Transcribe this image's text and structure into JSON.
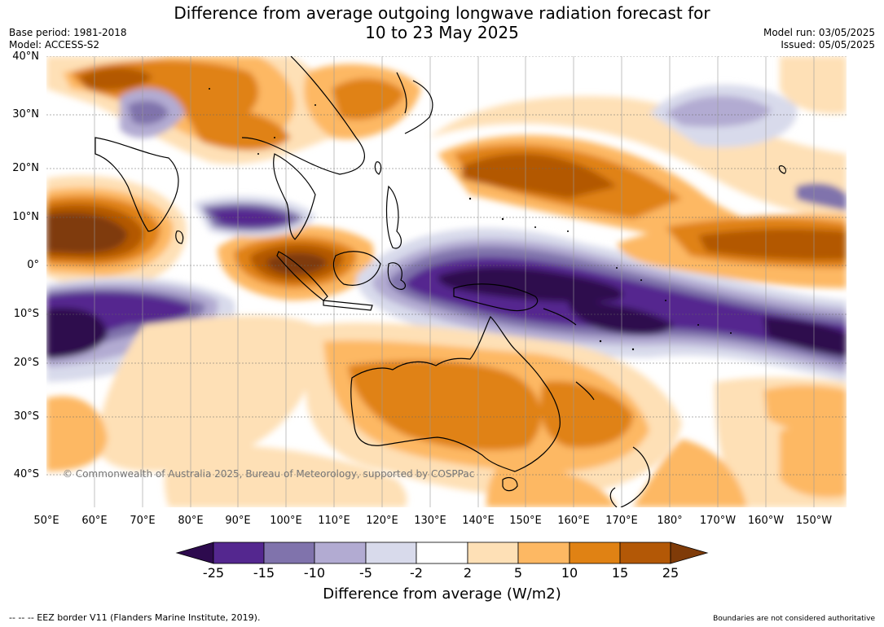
{
  "title": {
    "line1": "Difference from average outgoing longwave radiation forecast for",
    "line2": "10 to 23 May 2025"
  },
  "meta": {
    "base_period": "Base period: 1981-2018",
    "model": "Model: ACCESS-S2",
    "model_run": "Model run: 03/05/2025",
    "issued": "Issued: 05/05/2025"
  },
  "axes": {
    "lat_labels": [
      "40°N",
      "30°N",
      "20°N",
      "10°N",
      "0°",
      "10°S",
      "20°S",
      "30°S",
      "40°S"
    ],
    "lon_labels": [
      "50°E",
      "60°E",
      "70°E",
      "80°E",
      "90°E",
      "100°E",
      "110°E",
      "120°E",
      "130°E",
      "140°E",
      "150°E",
      "160°E",
      "170°E",
      "180°",
      "170°W",
      "160°W",
      "150°W"
    ]
  },
  "copyright": "© Commonwealth of Australia 2025, Bureau of Meteorology, supported by COSPPac",
  "colorbar": {
    "title": "Difference from average (W/m2)",
    "ticks": [
      "-25",
      "-15",
      "-10",
      "-5",
      "-2",
      "2",
      "5",
      "10",
      "15",
      "25"
    ],
    "colors": [
      "#2d0a4e",
      "#54278f",
      "#8073ac",
      "#b2abd2",
      "#d8daeb",
      "#ffffff",
      "#fee0b6",
      "#fdb863",
      "#e08214",
      "#b35806",
      "#7f3b08"
    ]
  },
  "footer": {
    "left": "--  --  -- EEZ border V11 (Flanders Marine Institute, 2019).",
    "right": "Boundaries are not considered authoritative"
  }
}
